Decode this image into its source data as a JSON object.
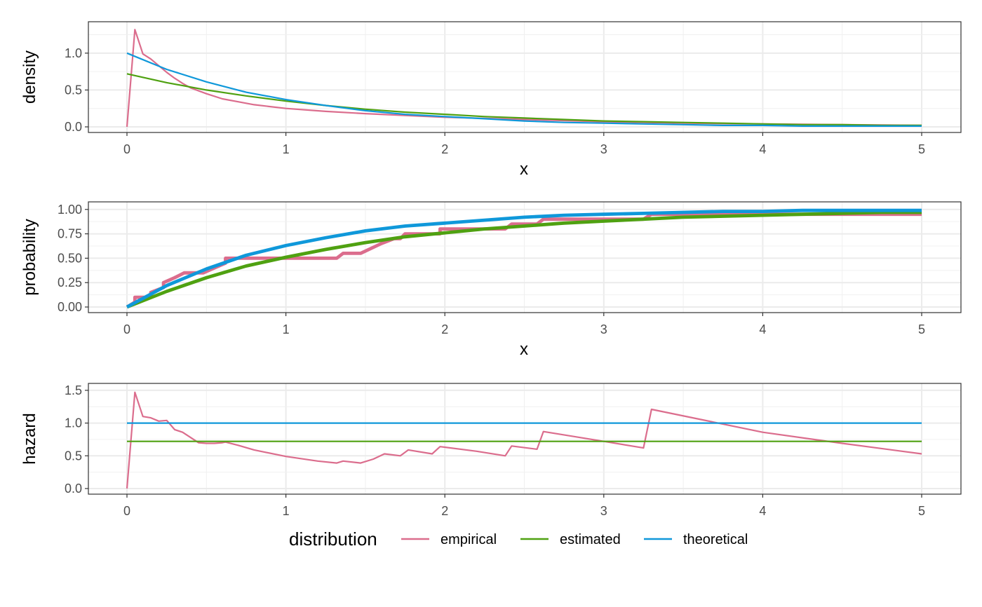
{
  "legend": {
    "title": "distribution",
    "items": [
      {
        "label": "empirical",
        "color": "#DB6D8D"
      },
      {
        "label": "estimated",
        "color": "#4FA111"
      },
      {
        "label": "theoretical",
        "color": "#0F98DA"
      }
    ]
  },
  "chart_data": [
    {
      "type": "line",
      "xlabel": "x",
      "ylabel": "density",
      "xlim": [
        0,
        5
      ],
      "ylim": [
        0,
        1.35
      ],
      "xticks": [
        "0",
        "1",
        "2",
        "3",
        "4",
        "5"
      ],
      "yticks": [
        "0.0",
        "0.5",
        "1.0"
      ],
      "grid": true,
      "series": [
        {
          "name": "empirical",
          "color": "#DB6D8D",
          "x": [
            0,
            0.05,
            0.1,
            0.15,
            0.2,
            0.25,
            0.3,
            0.35,
            0.4,
            0.5,
            0.6,
            0.7,
            0.8,
            1.0,
            1.25,
            1.5,
            2.0,
            2.5,
            3.0,
            3.5,
            4.0,
            4.5,
            5.0
          ],
          "y": [
            0,
            1.32,
            0.99,
            0.92,
            0.83,
            0.74,
            0.66,
            0.59,
            0.53,
            0.45,
            0.38,
            0.34,
            0.3,
            0.25,
            0.21,
            0.18,
            0.13,
            0.1,
            0.07,
            0.05,
            0.04,
            0.03,
            0.02
          ]
        },
        {
          "name": "estimated",
          "color": "#4FA111",
          "x": [
            0,
            0.25,
            0.5,
            0.75,
            1,
            1.25,
            1.5,
            1.75,
            2,
            2.25,
            2.5,
            2.75,
            3,
            3.25,
            3.5,
            3.75,
            4,
            4.25,
            4.5,
            4.75,
            5
          ],
          "y": [
            0.72,
            0.6,
            0.5,
            0.42,
            0.35,
            0.29,
            0.24,
            0.2,
            0.17,
            0.14,
            0.12,
            0.1,
            0.08,
            0.07,
            0.06,
            0.05,
            0.04,
            0.03,
            0.03,
            0.02,
            0.02
          ]
        },
        {
          "name": "theoretical",
          "color": "#0F98DA",
          "x": [
            0,
            0.25,
            0.5,
            0.75,
            1,
            1.25,
            1.5,
            1.75,
            2,
            2.25,
            2.5,
            2.75,
            3,
            3.25,
            3.5,
            3.75,
            4,
            4.25,
            4.5,
            4.75,
            5
          ],
          "y": [
            1.0,
            0.78,
            0.61,
            0.47,
            0.37,
            0.29,
            0.22,
            0.17,
            0.14,
            0.11,
            0.08,
            0.06,
            0.05,
            0.04,
            0.03,
            0.02,
            0.02,
            0.01,
            0.01,
            0.01,
            0.01
          ]
        }
      ]
    },
    {
      "type": "line",
      "xlabel": "x",
      "ylabel": "probability",
      "xlim": [
        0,
        5
      ],
      "ylim": [
        0,
        1.02
      ],
      "xticks": [
        "0",
        "1",
        "2",
        "3",
        "4",
        "5"
      ],
      "yticks": [
        "0.00",
        "0.25",
        "0.50",
        "0.75",
        "1.00"
      ],
      "grid": true,
      "series": [
        {
          "name": "empirical",
          "color": "#DB6D8D",
          "x": [
            0,
            0.05,
            0.05,
            0.15,
            0.15,
            0.23,
            0.23,
            0.3,
            0.3,
            0.36,
            0.36,
            0.48,
            0.55,
            0.62,
            0.62,
            0.8,
            1.0,
            1.32,
            1.32,
            1.36,
            1.36,
            1.47,
            1.47,
            1.6,
            1.68,
            1.72,
            1.72,
            1.75,
            1.75,
            1.97,
            1.97,
            2.38,
            2.38,
            2.42,
            2.42,
            2.58,
            2.58,
            2.62,
            2.62,
            3.25,
            3.25,
            3.3,
            3.3,
            5.0
          ],
          "y": [
            0,
            0.05,
            0.1,
            0.1,
            0.15,
            0.2,
            0.25,
            0.3,
            0.3,
            0.35,
            0.35,
            0.35,
            0.4,
            0.45,
            0.5,
            0.5,
            0.5,
            0.5,
            0.5,
            0.55,
            0.55,
            0.55,
            0.55,
            0.65,
            0.7,
            0.7,
            0.7,
            0.75,
            0.75,
            0.75,
            0.8,
            0.8,
            0.8,
            0.85,
            0.85,
            0.85,
            0.85,
            0.9,
            0.9,
            0.9,
            0.9,
            0.95,
            0.95,
            0.95
          ]
        },
        {
          "name": "estimated",
          "color": "#4FA111",
          "x": [
            0,
            0.25,
            0.5,
            0.75,
            1,
            1.25,
            1.5,
            1.75,
            2,
            2.25,
            2.5,
            2.75,
            3,
            3.25,
            3.5,
            3.75,
            4,
            4.25,
            4.5,
            4.75,
            5
          ],
          "y": [
            0,
            0.16,
            0.3,
            0.42,
            0.51,
            0.59,
            0.66,
            0.72,
            0.76,
            0.8,
            0.83,
            0.86,
            0.88,
            0.9,
            0.92,
            0.93,
            0.94,
            0.95,
            0.96,
            0.97,
            0.97
          ]
        },
        {
          "name": "theoretical",
          "color": "#0F98DA",
          "x": [
            0,
            0.25,
            0.5,
            0.75,
            1,
            1.25,
            1.5,
            1.75,
            2,
            2.25,
            2.5,
            2.75,
            3,
            3.25,
            3.5,
            3.75,
            4,
            4.25,
            4.5,
            4.75,
            5
          ],
          "y": [
            0,
            0.22,
            0.39,
            0.53,
            0.63,
            0.71,
            0.78,
            0.83,
            0.86,
            0.89,
            0.92,
            0.94,
            0.95,
            0.96,
            0.97,
            0.98,
            0.98,
            0.99,
            0.99,
            0.99,
            0.99
          ]
        }
      ]
    },
    {
      "type": "line",
      "xlabel": "",
      "ylabel": "hazard",
      "xlim": [
        0,
        5
      ],
      "ylim": [
        0,
        1.52
      ],
      "xticks": [
        "0",
        "1",
        "2",
        "3",
        "4",
        "5"
      ],
      "yticks": [
        "0.0",
        "0.5",
        "1.0",
        "1.5"
      ],
      "grid": true,
      "series": [
        {
          "name": "empirical",
          "color": "#DB6D8D",
          "x": [
            0,
            0.05,
            0.1,
            0.15,
            0.2,
            0.25,
            0.3,
            0.35,
            0.4,
            0.45,
            0.5,
            0.55,
            0.6,
            0.62,
            0.7,
            0.8,
            1.0,
            1.2,
            1.32,
            1.36,
            1.47,
            1.55,
            1.62,
            1.72,
            1.77,
            1.92,
            1.97,
            2.2,
            2.38,
            2.42,
            2.58,
            2.62,
            3.0,
            3.25,
            3.3,
            3.6,
            4.0,
            4.5,
            5.0
          ],
          "y": [
            0,
            1.47,
            1.1,
            1.08,
            1.03,
            1.04,
            0.9,
            0.86,
            0.78,
            0.7,
            0.69,
            0.69,
            0.7,
            0.71,
            0.66,
            0.59,
            0.49,
            0.42,
            0.39,
            0.42,
            0.39,
            0.45,
            0.53,
            0.5,
            0.59,
            0.53,
            0.64,
            0.57,
            0.5,
            0.65,
            0.6,
            0.87,
            0.72,
            0.62,
            1.21,
            1.06,
            0.86,
            0.69,
            0.53
          ]
        },
        {
          "name": "estimated",
          "color": "#4FA111",
          "x": [
            0,
            5
          ],
          "y": [
            0.72,
            0.72
          ]
        },
        {
          "name": "theoretical",
          "color": "#0F98DA",
          "x": [
            0,
            5
          ],
          "y": [
            1.0,
            1.0
          ]
        }
      ]
    }
  ]
}
